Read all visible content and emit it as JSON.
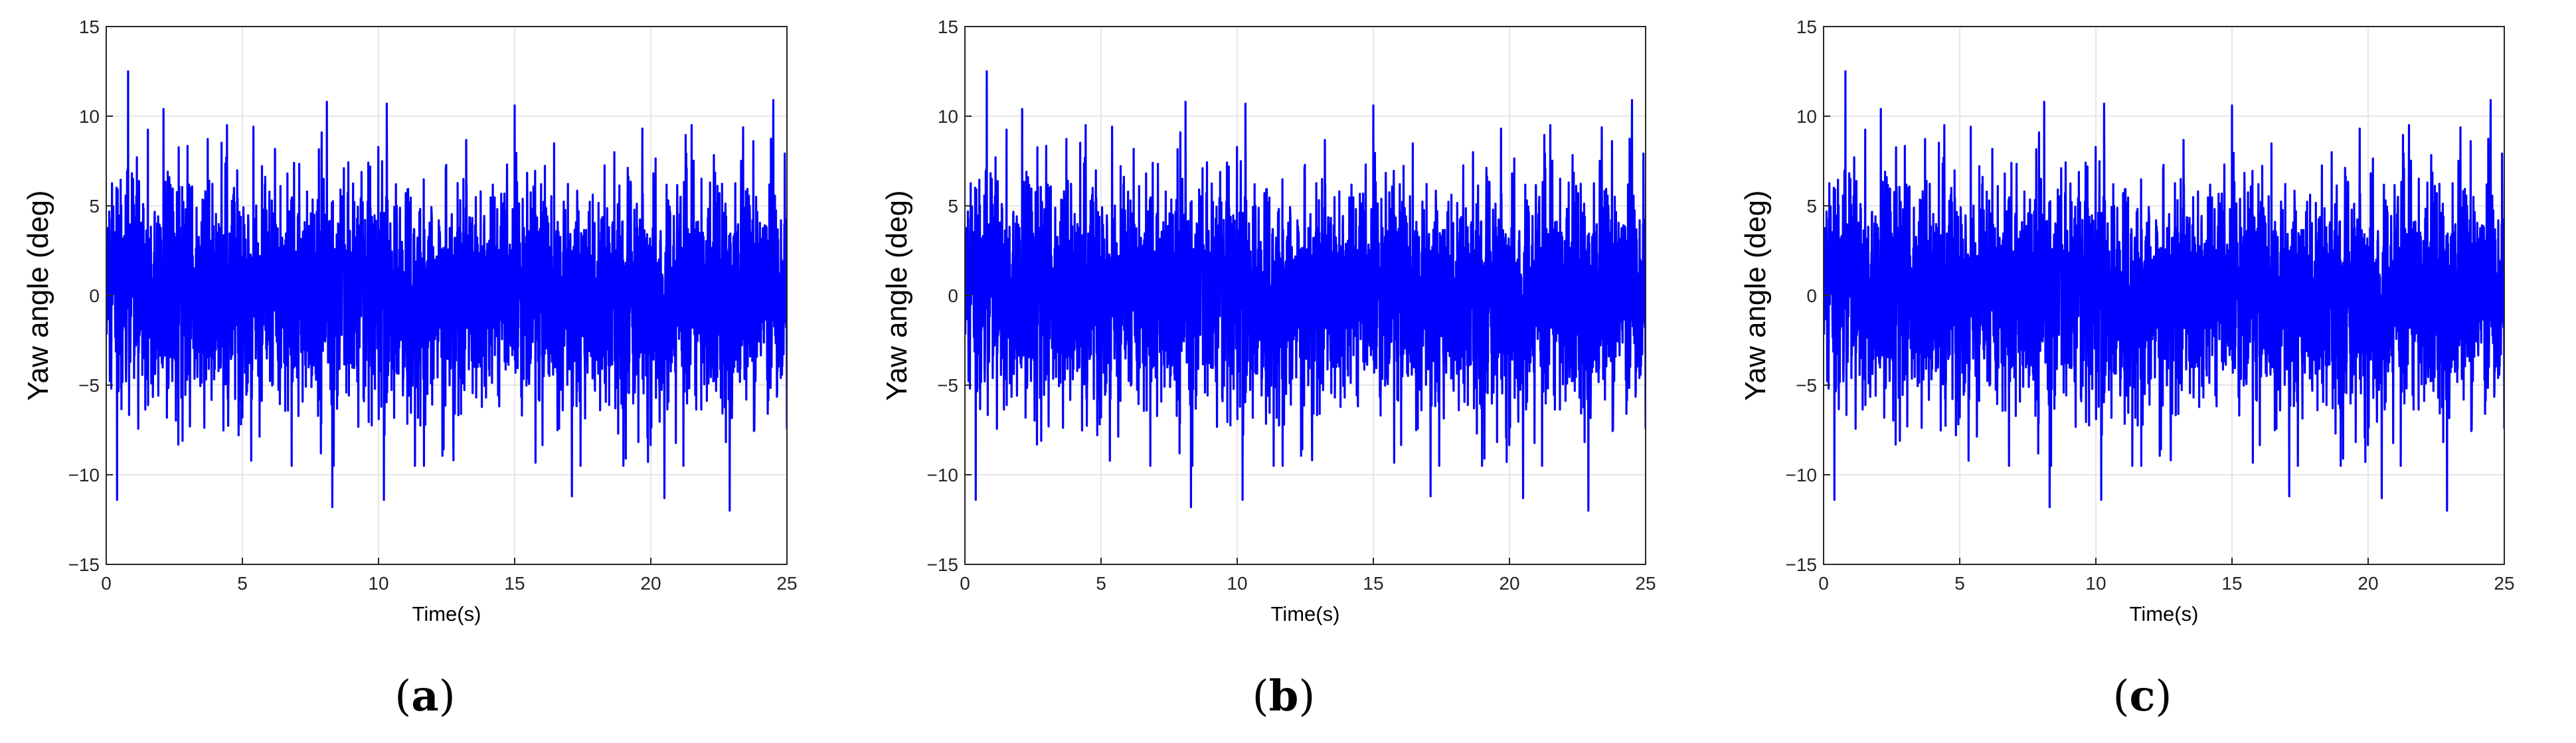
{
  "colors": {
    "line": "#0000ff",
    "grid": "#e6e6e6",
    "axis": "#262626",
    "background": "#ffffff"
  },
  "chart_data": [
    {
      "type": "line",
      "panel_label": "(a)",
      "xlabel": "Time(s)",
      "ylabel": "Yaw angle (deg)",
      "xlim": [
        0,
        25
      ],
      "ylim": [
        -15,
        15
      ],
      "xticks": [
        "0",
        "5",
        "10",
        "15",
        "20",
        "25"
      ],
      "yticks": [
        "15",
        "10",
        "5",
        "0",
        "−5",
        "−10",
        "−15"
      ],
      "grid": true,
      "signal": {
        "description_free": true,
        "duration": 25,
        "amplitude_rms": 3.2,
        "envelope_typical": [
          -8,
          8
        ],
        "peaks": [
          {
            "x": 0.8,
            "y": 12.5
          },
          {
            "x": 2.1,
            "y": 10.4
          },
          {
            "x": 8.1,
            "y": 10.8
          },
          {
            "x": 10.3,
            "y": 10.7
          },
          {
            "x": 15.0,
            "y": 10.6
          },
          {
            "x": 24.5,
            "y": 10.9
          },
          {
            "x": 0.4,
            "y": -11.4
          },
          {
            "x": 8.3,
            "y": -11.8
          },
          {
            "x": 10.2,
            "y": -11.4
          },
          {
            "x": 17.1,
            "y": -11.2
          },
          {
            "x": 20.5,
            "y": -11.3
          },
          {
            "x": 22.9,
            "y": -12.0
          }
        ]
      }
    },
    {
      "type": "line",
      "panel_label": "(b)",
      "xlabel": "Time(s)",
      "ylabel": "Yaw angle (deg)",
      "xlim": [
        0,
        25
      ],
      "ylim": [
        -15,
        15
      ],
      "xticks": [
        "0",
        "5",
        "10",
        "15",
        "20",
        "25"
      ],
      "yticks": [
        "15",
        "10",
        "5",
        "0",
        "−5",
        "−10",
        "−15"
      ],
      "grid": true,
      "signal": {
        "duration": 25,
        "amplitude_rms": 3.2,
        "envelope_typical": [
          -8,
          8
        ],
        "peaks": [
          {
            "x": 0.8,
            "y": 12.5
          },
          {
            "x": 2.1,
            "y": 10.4
          },
          {
            "x": 8.1,
            "y": 10.8
          },
          {
            "x": 10.3,
            "y": 10.7
          },
          {
            "x": 15.0,
            "y": 10.6
          },
          {
            "x": 24.5,
            "y": 10.9
          },
          {
            "x": 0.4,
            "y": -11.4
          },
          {
            "x": 8.3,
            "y": -11.8
          },
          {
            "x": 10.2,
            "y": -11.4
          },
          {
            "x": 17.1,
            "y": -11.2
          },
          {
            "x": 20.5,
            "y": -11.3
          },
          {
            "x": 22.9,
            "y": -12.0
          }
        ]
      }
    },
    {
      "type": "line",
      "panel_label": "(c)",
      "xlabel": "Time(s)",
      "ylabel": "Yaw angle (deg)",
      "xlim": [
        0,
        25
      ],
      "ylim": [
        -15,
        15
      ],
      "xticks": [
        "0",
        "5",
        "10",
        "15",
        "20",
        "25"
      ],
      "yticks": [
        "15",
        "10",
        "5",
        "0",
        "−5",
        "−10",
        "−15"
      ],
      "grid": true,
      "signal": {
        "duration": 25,
        "amplitude_rms": 3.2,
        "envelope_typical": [
          -8,
          8
        ],
        "peaks": [
          {
            "x": 0.8,
            "y": 12.5
          },
          {
            "x": 2.1,
            "y": 10.4
          },
          {
            "x": 8.1,
            "y": 10.8
          },
          {
            "x": 10.3,
            "y": 10.7
          },
          {
            "x": 15.0,
            "y": 10.6
          },
          {
            "x": 24.5,
            "y": 10.9
          },
          {
            "x": 0.4,
            "y": -11.4
          },
          {
            "x": 8.3,
            "y": -11.8
          },
          {
            "x": 10.2,
            "y": -11.4
          },
          {
            "x": 17.1,
            "y": -11.2
          },
          {
            "x": 20.5,
            "y": -11.3
          },
          {
            "x": 22.9,
            "y": -12.0
          }
        ]
      }
    }
  ]
}
